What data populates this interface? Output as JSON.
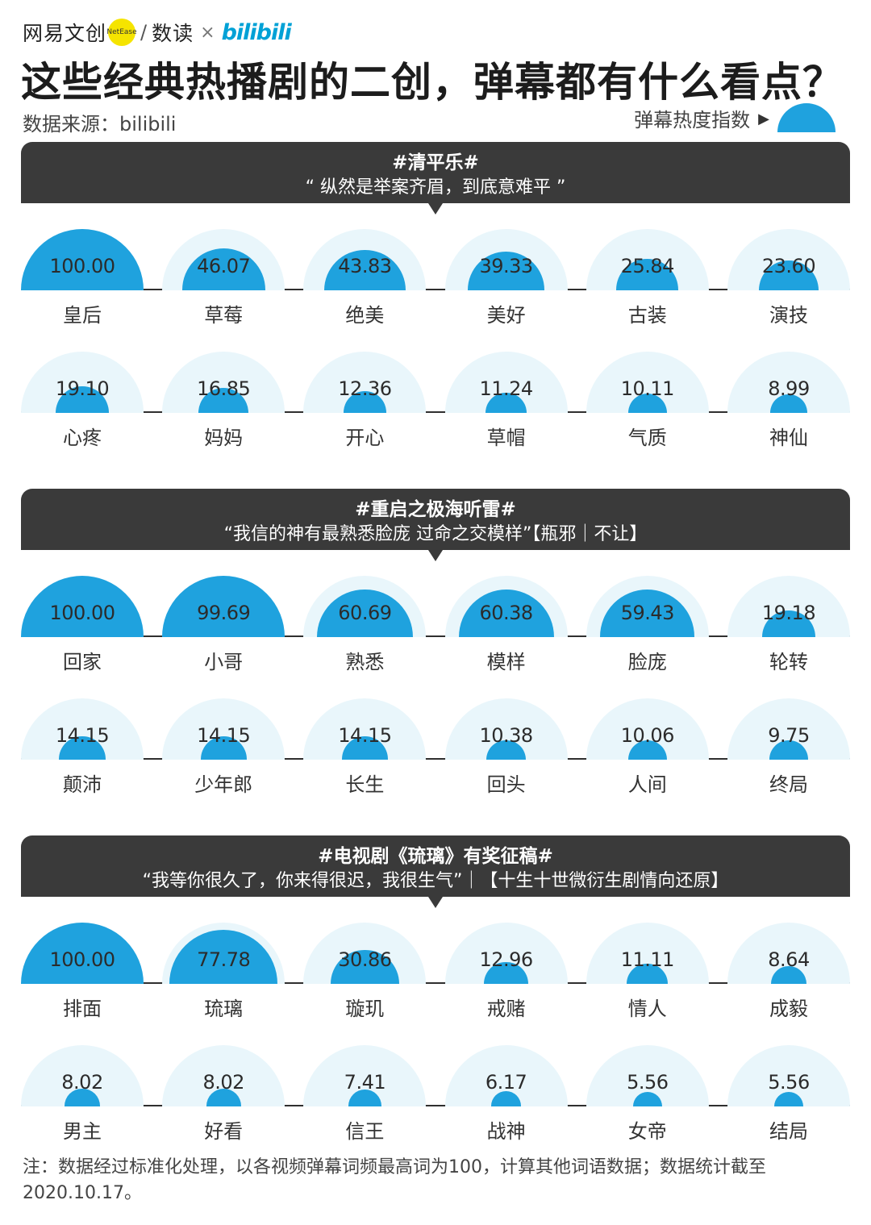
{
  "header": {
    "logo_netease": "网易文创",
    "logo_badge": "NetEase",
    "logo_shudu": "数读",
    "logo_times": "×",
    "logo_bili": "bilibili",
    "title": "这些经典热播剧的二创，弹幕都有什么看点？",
    "source": "数据来源：bilibili",
    "legend_label": "弹幕热度指数",
    "legend_arrow": "▶"
  },
  "colors": {
    "dome": "#1fa2de",
    "halo": "#e9f6fb",
    "banner": "#3a3a3a"
  },
  "chart_data": [
    {
      "type": "bar",
      "title": "#清平乐#",
      "subtitle": "“ 纵然是举案齐眉，到底意难平 ”",
      "categories": [
        "皇后",
        "草莓",
        "绝美",
        "美好",
        "古装",
        "演技",
        "心疼",
        "妈妈",
        "开心",
        "草帽",
        "气质",
        "神仙"
      ],
      "values": [
        100.0,
        46.07,
        43.83,
        39.33,
        25.84,
        23.6,
        19.1,
        16.85,
        12.36,
        11.24,
        10.11,
        8.99
      ],
      "labels": [
        "100.00",
        "46.07",
        "43.83",
        "39.33",
        "25.84",
        "23.60",
        "19.10",
        "16.85",
        "12.36",
        "11.24",
        "10.11",
        "8.99"
      ]
    },
    {
      "type": "bar",
      "title": "#重启之极海听雷#",
      "subtitle": "“我信的神有最熟悉脸庞 过命之交模样”【瓶邪｜不让】",
      "categories": [
        "回家",
        "小哥",
        "熟悉",
        "模样",
        "脸庞",
        "轮转",
        "颠沛",
        "少年郎",
        "长生",
        "回头",
        "人间",
        "终局"
      ],
      "values": [
        100.0,
        99.69,
        60.69,
        60.38,
        59.43,
        19.18,
        14.15,
        14.15,
        14.15,
        10.38,
        10.06,
        9.75
      ],
      "labels": [
        "100.00",
        "99.69",
        "60.69",
        "60.38",
        "59.43",
        "19.18",
        "14.15",
        "14.15",
        "14.15",
        "10.38",
        "10.06",
        "9.75"
      ]
    },
    {
      "type": "bar",
      "title": "#电视剧《琉璃》有奖征稿#",
      "subtitle": "“我等你很久了，你来得很迟，我很生气”｜【十生十世微衍生剧情向还原】",
      "categories": [
        "排面",
        "琉璃",
        "璇玑",
        "戒赌",
        "情人",
        "成毅",
        "男主",
        "好看",
        "信王",
        "战神",
        "女帝",
        "结局"
      ],
      "values": [
        100.0,
        77.78,
        30.86,
        12.96,
        11.11,
        8.64,
        8.02,
        8.02,
        7.41,
        6.17,
        5.56,
        5.56
      ],
      "labels": [
        "100.00",
        "77.78",
        "30.86",
        "12.96",
        "11.11",
        "8.64",
        "8.02",
        "8.02",
        "7.41",
        "6.17",
        "5.56",
        "5.56"
      ]
    }
  ],
  "note": "注：数据经过标准化处理，以各视频弹幕词频最高词为100，计算其他词语数据；数据统计截至2020.10.17。"
}
